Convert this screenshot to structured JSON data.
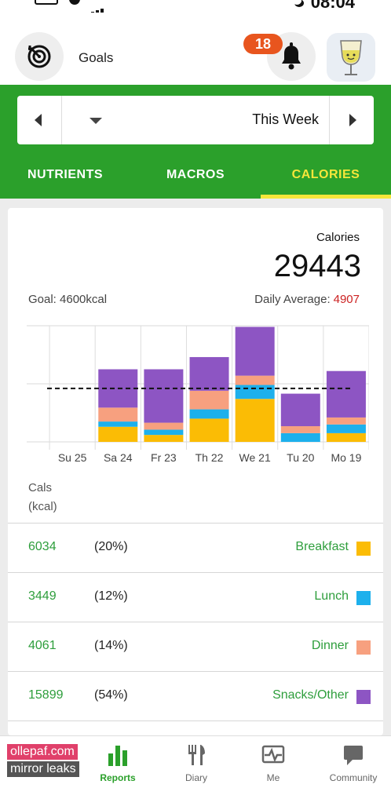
{
  "status": {
    "time": "08:04"
  },
  "header": {
    "goals_label": "Goals",
    "notification_count": "18"
  },
  "week_selector": {
    "label": "This Week"
  },
  "tabs": [
    {
      "key": "nutrients",
      "label": "NUTRIENTS"
    },
    {
      "key": "macros",
      "label": "MACROS"
    },
    {
      "key": "calories",
      "label": "CALORIES",
      "selected": true
    }
  ],
  "summary": {
    "title": "Calories",
    "total": "29443",
    "daily_average_label": "Daily Average:",
    "daily_average_value": "4907",
    "goal_text": "Goal: 4600kcal"
  },
  "chart_data": {
    "type": "bar",
    "stacked": true,
    "categories": [
      "Mo 19",
      "Tu 20",
      "We 21",
      "Th 22",
      "Fr 23",
      "Sa 24",
      "Su 25"
    ],
    "goal_line": 4600,
    "ylim": [
      0,
      10000
    ],
    "grid": true,
    "series": [
      {
        "name": "Breakfast",
        "color": "#fbbc05",
        "values": [
          750,
          0,
          3700,
          2000,
          600,
          1300,
          0
        ]
      },
      {
        "name": "Lunch",
        "color": "#1db0ec",
        "values": [
          750,
          750,
          1200,
          800,
          450,
          450,
          0
        ]
      },
      {
        "name": "Dinner",
        "color": "#f7a07f",
        "values": [
          600,
          600,
          800,
          1600,
          600,
          1200,
          0
        ]
      },
      {
        "name": "Snacks/Other",
        "color": "#8d55c3",
        "values": [
          4000,
          2800,
          4200,
          2900,
          4600,
          3300,
          0
        ]
      }
    ]
  },
  "cals_label_line1": "Cals",
  "cals_label_line2": "(kcal)",
  "rows": [
    {
      "name": "Breakfast",
      "pct": "(20%)",
      "value": "6034",
      "color": "#fbbc05"
    },
    {
      "name": "Lunch",
      "pct": "(12%)",
      "value": "3449",
      "color": "#1db0ec"
    },
    {
      "name": "Dinner",
      "pct": "(14%)",
      "value": "4061",
      "color": "#f7a07f"
    },
    {
      "name": "Snacks/Other",
      "pct": "(54%)",
      "value": "15899",
      "color": "#8d55c3"
    }
  ],
  "bottom_nav": [
    {
      "key": "community",
      "label": "Community"
    },
    {
      "key": "me",
      "label": "Me"
    },
    {
      "key": "diary",
      "label": "Diary"
    },
    {
      "key": "reports",
      "label": "Reports",
      "active": true
    }
  ],
  "watermark": {
    "line1": "ollepaf.com",
    "line2": "mirror leaks"
  }
}
